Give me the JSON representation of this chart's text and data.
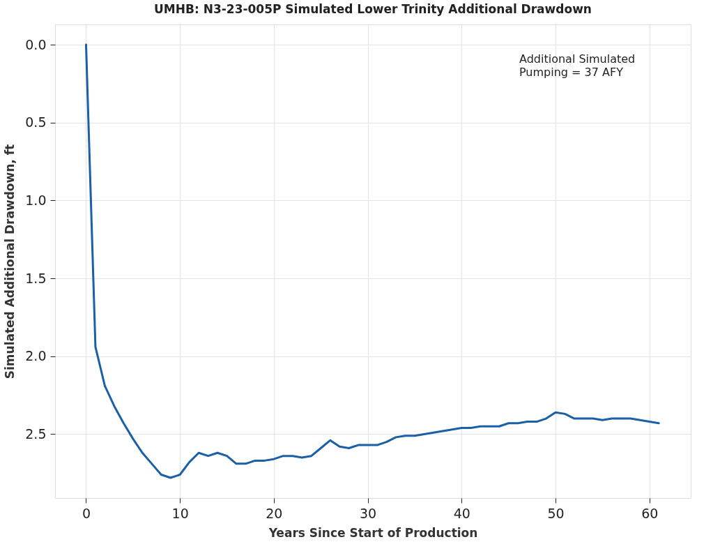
{
  "chart_data": {
    "type": "line",
    "title": "UMHB: N3-23-005P Simulated Lower Trinity Additional Drawdown",
    "xlabel": "Years Since Start of Production",
    "ylabel": "Simulated Additional Drawdown, ft",
    "annotations": [
      "Additional Simulated\nPumping = 37 AFY"
    ],
    "x": [
      0,
      1,
      2,
      3,
      4,
      5,
      6,
      7,
      8,
      9,
      10,
      11,
      12,
      13,
      14,
      15,
      16,
      17,
      18,
      19,
      20,
      21,
      22,
      23,
      24,
      25,
      26,
      27,
      28,
      29,
      30,
      31,
      32,
      33,
      34,
      35,
      36,
      37,
      38,
      39,
      40,
      41,
      42,
      43,
      44,
      45,
      46,
      47,
      48,
      49,
      50,
      51,
      52,
      53,
      54,
      55,
      56,
      57,
      58,
      59,
      60,
      61
    ],
    "series": [
      {
        "color": "#1a5fa8",
        "values": [
          0,
          1.94,
          2.19,
          2.32,
          2.43,
          2.53,
          2.62,
          2.69,
          2.76,
          2.78,
          2.76,
          2.68,
          2.62,
          2.64,
          2.62,
          2.64,
          2.69,
          2.69,
          2.67,
          2.67,
          2.66,
          2.64,
          2.64,
          2.65,
          2.64,
          2.59,
          2.54,
          2.58,
          2.59,
          2.57,
          2.57,
          2.57,
          2.55,
          2.52,
          2.51,
          2.51,
          2.5,
          2.49,
          2.48,
          2.47,
          2.46,
          2.46,
          2.45,
          2.45,
          2.45,
          2.43,
          2.43,
          2.42,
          2.42,
          2.4,
          2.36,
          2.37,
          2.4,
          2.4,
          2.4,
          2.41,
          2.4,
          2.4,
          2.4,
          2.41,
          2.42,
          2.43
        ]
      }
    ],
    "xlim": [
      -3.3,
      64.4
    ],
    "ylim": [
      2.91,
      -0.13
    ],
    "xticks": [
      0,
      10,
      20,
      30,
      40,
      50,
      60
    ],
    "yticks": [
      {
        "value": 0,
        "label": "0.0"
      },
      0.5,
      {
        "value": 1,
        "label": "1.0"
      },
      1.5,
      {
        "value": 2,
        "label": "2.0"
      },
      2.5
    ],
    "grid": true,
    "line_style": "solid",
    "marker": "none"
  }
}
